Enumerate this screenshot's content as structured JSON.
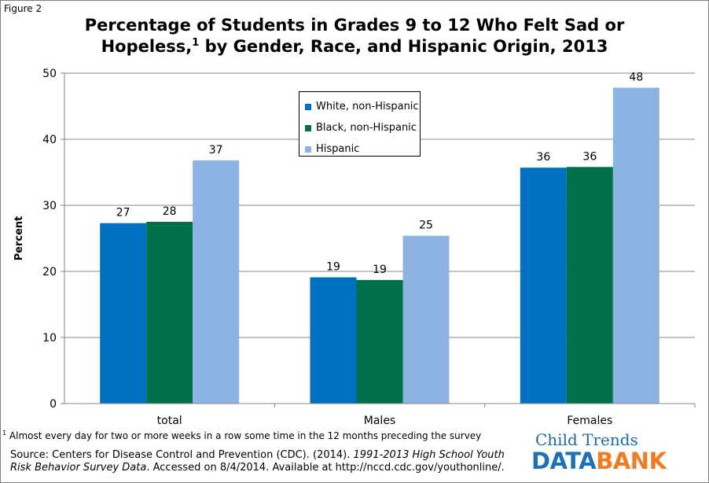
{
  "figure_label": "Figure 2",
  "title_line1": "Percentage of Students in Grades 9 to 12 Who Felt Sad or",
  "title_line2a": "Hopeless,",
  "title_sup": "1",
  "title_line2b": " by Gender, Race, and Hispanic Origin, 2013",
  "colors": {
    "white": "#0070c0",
    "black": "#00704a",
    "hispanic": "#8db3e2",
    "grid": "#868686"
  },
  "chart_data": {
    "type": "bar",
    "title": "Percentage of Students in Grades 9 to 12 Who Felt Sad or Hopeless,1 by Gender, Race, and Hispanic Origin, 2013",
    "xlabel": "",
    "ylabel": "Percent",
    "ylim": [
      0,
      50
    ],
    "yticks": [
      0,
      10,
      20,
      30,
      40,
      50
    ],
    "grid": true,
    "legend_position": "top-center",
    "categories": [
      "total",
      "Males",
      "Females"
    ],
    "series": [
      {
        "name": "White, non-Hispanic",
        "values": [
          27.3,
          19.1,
          35.7
        ],
        "labels": [
          "27",
          "19",
          "36"
        ]
      },
      {
        "name": "Black, non-Hispanic",
        "values": [
          27.5,
          18.7,
          35.8
        ],
        "labels": [
          "28",
          "19",
          "36"
        ]
      },
      {
        "name": "Hispanic",
        "values": [
          36.8,
          25.4,
          47.8
        ],
        "labels": [
          "37",
          "25",
          "48"
        ]
      }
    ]
  },
  "footnote_sup": "1",
  "footnote_text": " Almost every day for two or more weeks in a row some time in the 12 months preceding the survey",
  "source_prefix": "Source: Centers for Disease Control and Prevention (CDC). (2014). ",
  "source_italic": "1991-2013 High School Youth Risk Behavior Survey Data",
  "source_suffix": ". Accessed on 8/4/2014. Available at http://nccd.cdc.gov/youthonline/.",
  "logo": {
    "line1": "Child Trends",
    "part_a": "DATA",
    "part_b": "BANK"
  }
}
